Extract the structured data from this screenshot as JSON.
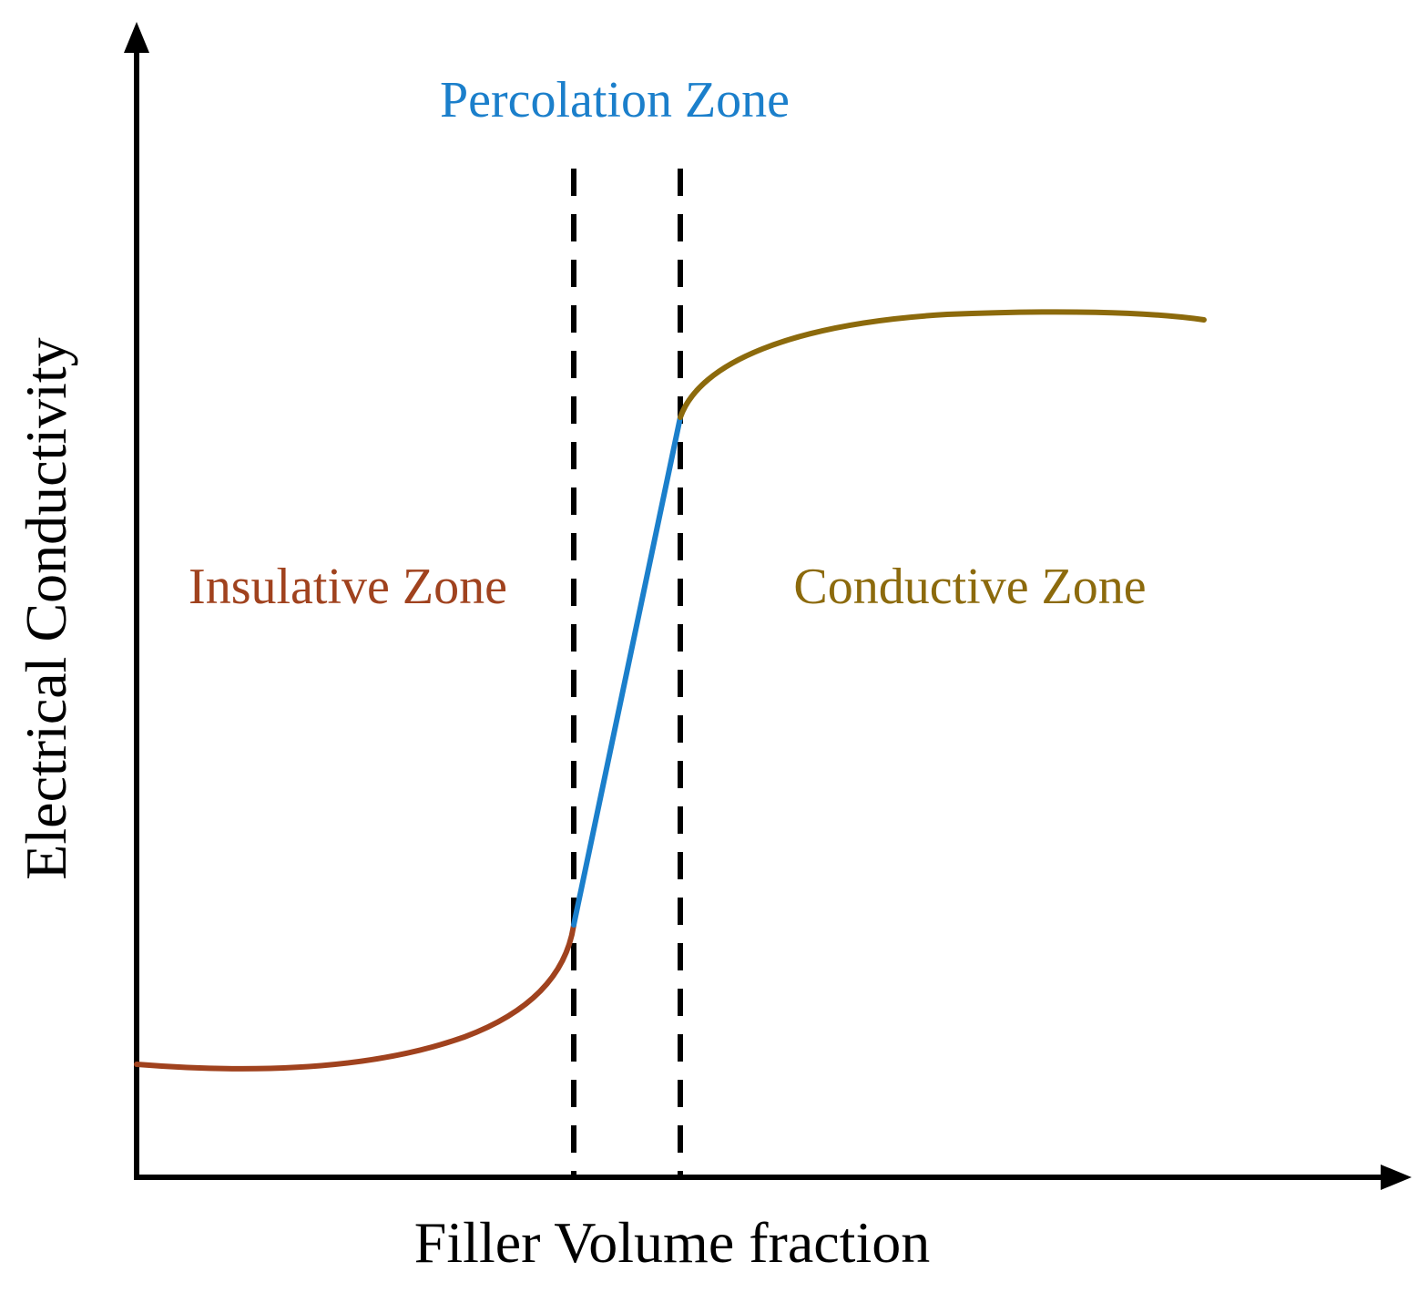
{
  "axes": {
    "x_label": "Filler Volume fraction",
    "y_label": "Electrical Conductivity"
  },
  "zones": [
    {
      "key": "insulative",
      "label": "Insulative Zone",
      "color": "#A0421E"
    },
    {
      "key": "percolation",
      "label": "Percolation Zone",
      "color": "#1B7FCB"
    },
    {
      "key": "conductive",
      "label": "Conductive Zone",
      "color": "#8C6A0C"
    }
  ],
  "colors": {
    "axis": "#000000",
    "threshold_lines": "#000000"
  }
}
